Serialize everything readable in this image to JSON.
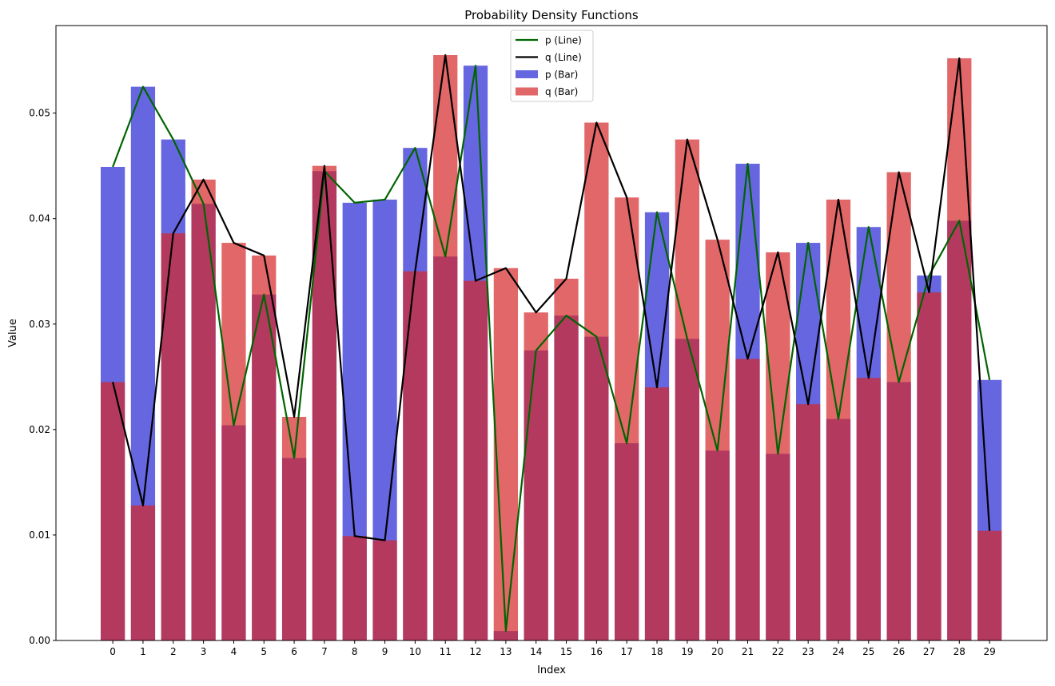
{
  "chart_data": {
    "type": "bar",
    "title": "Probability Density Functions",
    "xlabel": "Index",
    "ylabel": "Value",
    "ylim": [
      0,
      0.0583
    ],
    "xlim": [
      -1.88,
      30.9
    ],
    "yticks": [
      0.0,
      0.01,
      0.02,
      0.03,
      0.04,
      0.05
    ],
    "ytick_labels": [
      "0.00",
      "0.01",
      "0.02",
      "0.03",
      "0.04",
      "0.05"
    ],
    "categories": [
      "0",
      "1",
      "2",
      "3",
      "4",
      "5",
      "6",
      "7",
      "8",
      "9",
      "10",
      "11",
      "12",
      "13",
      "14",
      "15",
      "16",
      "17",
      "18",
      "19",
      "20",
      "21",
      "22",
      "23",
      "24",
      "25",
      "26",
      "27",
      "28",
      "29"
    ],
    "legend_position": "top-center",
    "series": [
      {
        "name": "p (Line)",
        "kind": "line",
        "color": "#006400",
        "ref": "p"
      },
      {
        "name": "q (Line)",
        "kind": "line",
        "color": "#000000",
        "ref": "q"
      },
      {
        "name": "p (Bar)",
        "kind": "bar",
        "color": "#0000cc",
        "opacity": 0.6,
        "ref": "p"
      },
      {
        "name": "q (Bar)",
        "kind": "bar",
        "color": "#d62728",
        "opacity": 0.7,
        "ref": "q"
      }
    ],
    "p": [
      0.0449,
      0.0525,
      0.0475,
      0.0414,
      0.0204,
      0.0328,
      0.0173,
      0.0445,
      0.0415,
      0.0418,
      0.0467,
      0.0364,
      0.0545,
      0.0009,
      0.0275,
      0.0308,
      0.0288,
      0.0187,
      0.0406,
      0.0286,
      0.018,
      0.0452,
      0.0177,
      0.0377,
      0.021,
      0.0392,
      0.0245,
      0.0346,
      0.0398,
      0.0247
    ],
    "q": [
      0.0245,
      0.0128,
      0.0386,
      0.0437,
      0.0377,
      0.0365,
      0.0212,
      0.045,
      0.0099,
      0.0095,
      0.035,
      0.0555,
      0.0341,
      0.0353,
      0.0311,
      0.0343,
      0.0491,
      0.042,
      0.024,
      0.0475,
      0.038,
      0.0267,
      0.0368,
      0.0224,
      0.0418,
      0.0249,
      0.0444,
      0.033,
      0.0552,
      0.0104
    ]
  }
}
